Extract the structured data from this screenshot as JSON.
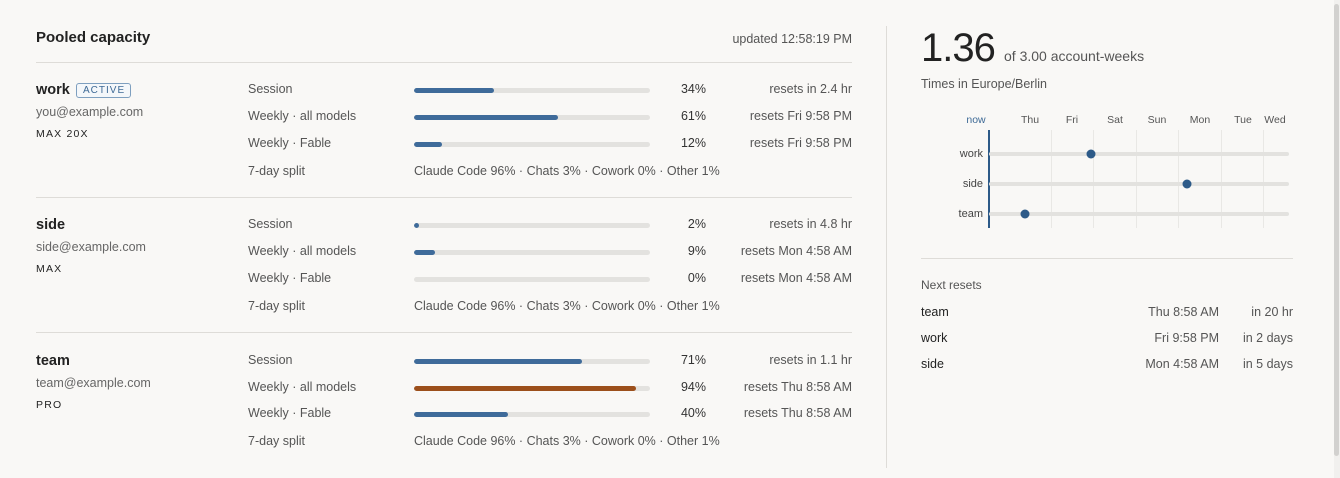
{
  "header": {
    "title": "Pooled capacity",
    "updated": "updated 12:58:19 PM"
  },
  "colors": {
    "bar_normal": "#3f6b9a",
    "bar_high": "#9c4f1b",
    "accent": "#2d5a88"
  },
  "accounts": [
    {
      "name": "work",
      "badge": "ACTIVE",
      "email": "you@example.com",
      "plan": "MAX 20X",
      "rows": [
        {
          "label": "Session",
          "percent": 34,
          "percent_text": "34%",
          "reset": "resets in 2.4 hr"
        },
        {
          "label": "Weekly · all models",
          "percent": 61,
          "percent_text": "61%",
          "reset": "resets Fri 9:58 PM"
        },
        {
          "label": "Weekly · Fable",
          "percent": 12,
          "percent_text": "12%",
          "reset": "resets Fri 9:58 PM"
        }
      ],
      "split_label": "7-day split",
      "split_text": "Claude Code 96% · Chats 3% · Cowork 0% · Other 1%"
    },
    {
      "name": "side",
      "badge": "",
      "email": "side@example.com",
      "plan": "MAX",
      "rows": [
        {
          "label": "Session",
          "percent": 2,
          "percent_text": "2%",
          "reset": "resets in 4.8 hr"
        },
        {
          "label": "Weekly · all models",
          "percent": 9,
          "percent_text": "9%",
          "reset": "resets Mon 4:58 AM"
        },
        {
          "label": "Weekly · Fable",
          "percent": 0,
          "percent_text": "0%",
          "reset": "resets Mon 4:58 AM"
        }
      ],
      "split_label": "7-day split",
      "split_text": "Claude Code 96% · Chats 3% · Cowork 0% · Other 1%"
    },
    {
      "name": "team",
      "badge": "",
      "email": "team@example.com",
      "plan": "PRO",
      "rows": [
        {
          "label": "Session",
          "percent": 71,
          "percent_text": "71%",
          "reset": "resets in 1.1 hr"
        },
        {
          "label": "Weekly · all models",
          "percent": 94,
          "percent_text": "94%",
          "reset": "resets Thu 8:58 AM",
          "high": true
        },
        {
          "label": "Weekly · Fable",
          "percent": 40,
          "percent_text": "40%",
          "reset": "resets Thu 8:58 AM"
        }
      ],
      "split_label": "7-day split",
      "split_text": "Claude Code 96% · Chats 3% · Cowork 0% · Other 1%"
    }
  ],
  "summary": {
    "value": "1.36",
    "of_text": "of 3.00 account-weeks",
    "timezone": "Times in Europe/Berlin"
  },
  "timeline": {
    "columns": [
      "now",
      "Thu",
      "Fri",
      "Sat",
      "Sun",
      "Mon",
      "Tue",
      "Wed"
    ],
    "rows": [
      {
        "label": "work",
        "reset_fraction": 0.34
      },
      {
        "label": "side",
        "reset_fraction": 0.66
      },
      {
        "label": "team",
        "reset_fraction": 0.12
      }
    ]
  },
  "next_resets": {
    "title": "Next resets",
    "items": [
      {
        "name": "team",
        "when": "Thu 8:58 AM",
        "in": "in 20 hr"
      },
      {
        "name": "work",
        "when": "Fri 9:58 PM",
        "in": "in 2 days"
      },
      {
        "name": "side",
        "when": "Mon 4:58 AM",
        "in": "in 5 days"
      }
    ]
  }
}
